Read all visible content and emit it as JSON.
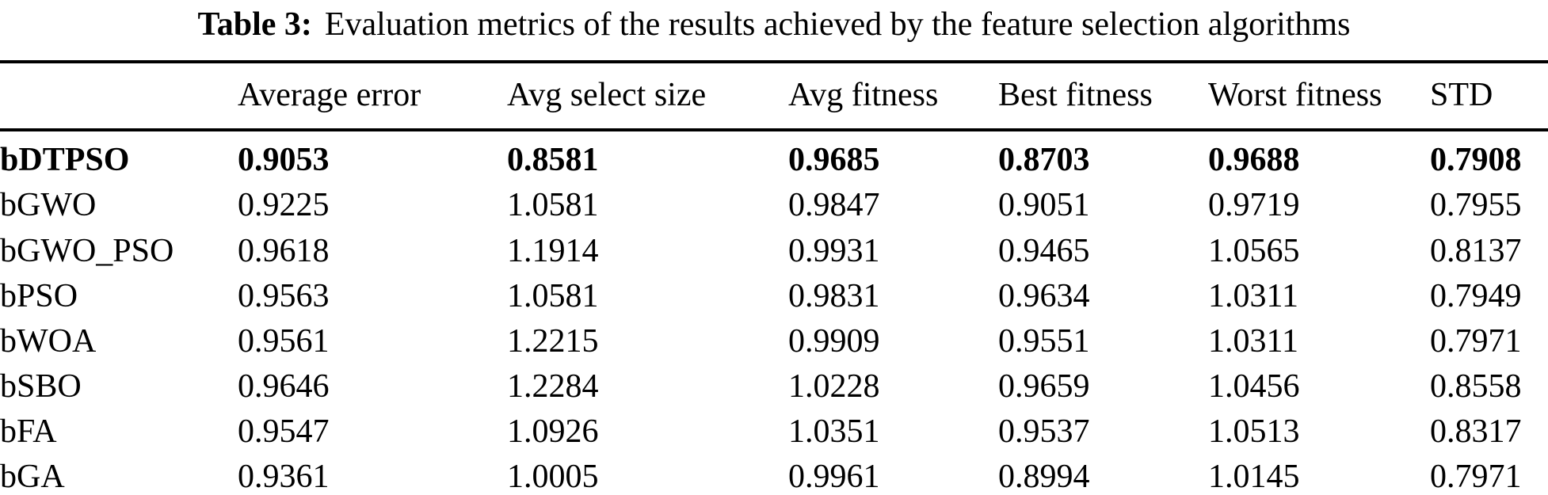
{
  "caption": {
    "label": "Table 3:",
    "text": "Evaluation metrics of the results achieved by the feature selection algorithms"
  },
  "table": {
    "columns": [
      "Average error",
      "Avg select size",
      "Avg fitness",
      "Best fitness",
      "Worst fitness",
      "STD"
    ],
    "rows": [
      {
        "name": "bDTPSO",
        "values": [
          "0.9053",
          "0.8581",
          "0.9685",
          "0.8703",
          "0.9688",
          "0.7908"
        ]
      },
      {
        "name": "bGWO",
        "values": [
          "0.9225",
          "1.0581",
          "0.9847",
          "0.9051",
          "0.9719",
          "0.7955"
        ]
      },
      {
        "name": "bGWO_PSO",
        "values": [
          "0.9618",
          "1.1914",
          "0.9931",
          "0.9465",
          "1.0565",
          "0.8137"
        ]
      },
      {
        "name": "bPSO",
        "values": [
          "0.9563",
          "1.0581",
          "0.9831",
          "0.9634",
          "1.0311",
          "0.7949"
        ]
      },
      {
        "name": "bWOA",
        "values": [
          "0.9561",
          "1.2215",
          "0.9909",
          "0.9551",
          "1.0311",
          "0.7971"
        ]
      },
      {
        "name": "bSBO",
        "values": [
          "0.9646",
          "1.2284",
          "1.0228",
          "0.9659",
          "1.0456",
          "0.8558"
        ]
      },
      {
        "name": "bFA",
        "values": [
          "0.9547",
          "1.0926",
          "1.0351",
          "0.9537",
          "1.0513",
          "0.8317"
        ]
      },
      {
        "name": "bGA",
        "values": [
          "0.9361",
          "1.0005",
          "0.9961",
          "0.8994",
          "1.0145",
          "0.7971"
        ]
      }
    ]
  }
}
